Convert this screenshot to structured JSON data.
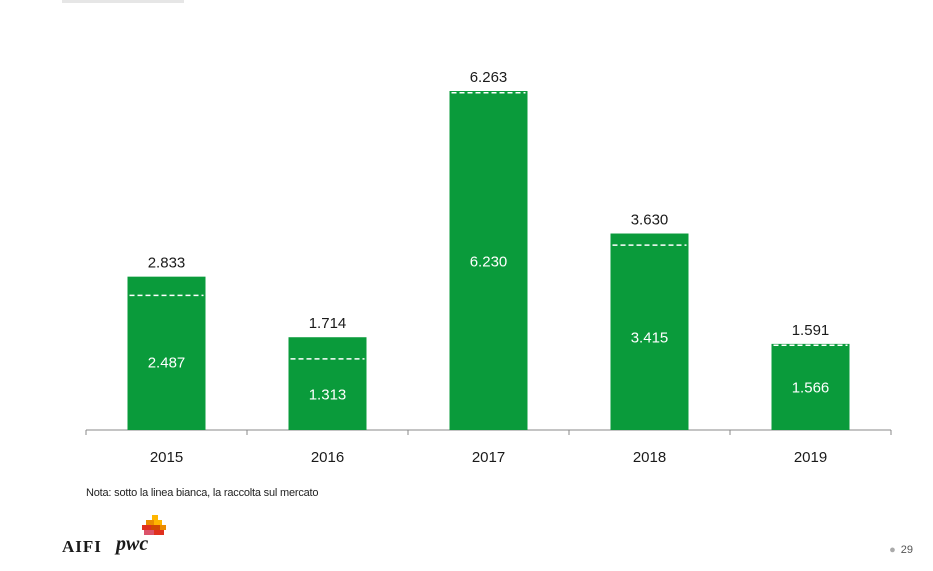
{
  "chart_data": {
    "type": "bar",
    "categories": [
      "2015",
      "2016",
      "2017",
      "2018",
      "2019"
    ],
    "series": [
      {
        "values": [
          2833,
          1714,
          6263,
          3630,
          1591
        ]
      },
      {
        "values": [
          2487,
          1313,
          6230,
          3415,
          1566
        ]
      }
    ],
    "total_labels": [
      "2.833",
      "1.714",
      "6.263",
      "3.630",
      "1.591"
    ],
    "inner_labels": [
      "2.487",
      "1.313",
      "6.230",
      "3.415",
      "1.566"
    ],
    "ylim": [
      0,
      6263
    ],
    "grid": false,
    "bar_color": "#0a9b3b",
    "marker_color": "#ffffff"
  },
  "note": "Nota: sotto la linea bianca, la raccolta sul mercato",
  "footer": {
    "logo_left": "AIFI",
    "logo_right": "pwc",
    "page_number": "29"
  }
}
